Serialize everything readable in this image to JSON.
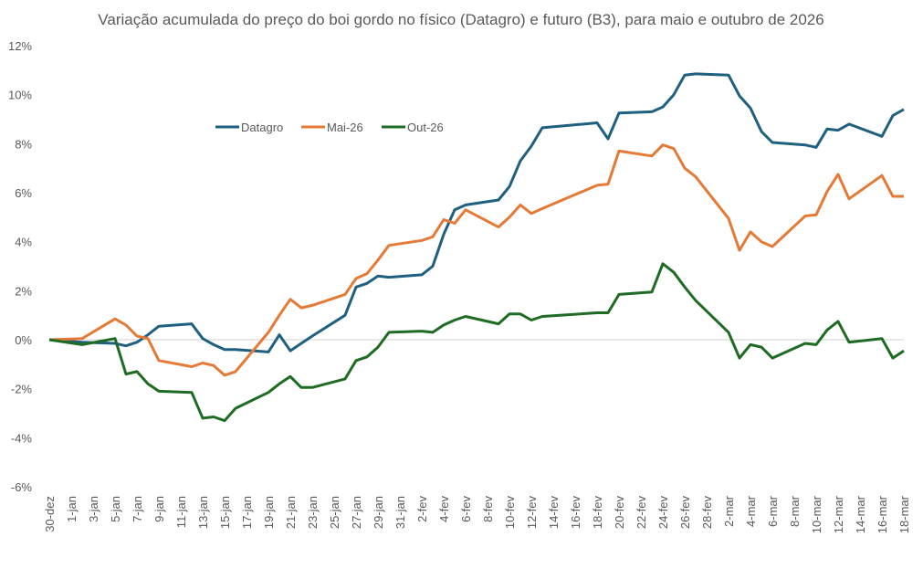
{
  "chart_data": {
    "type": "line",
    "title": "Variação acumulada do preço do boi gordo no físico (Datagro) e futuro (B3), para maio e outubro de 2026",
    "xlabel": "",
    "ylabel": "",
    "ylim": [
      -6,
      12
    ],
    "y_ticks": [
      "-6%",
      "-4%",
      "-2%",
      "0%",
      "2%",
      "4%",
      "6%",
      "8%",
      "10%",
      "12%"
    ],
    "y_tick_values": [
      -6,
      -4,
      -2,
      0,
      2,
      4,
      6,
      8,
      10,
      12
    ],
    "x_range": [
      "30-dez",
      "18-mar"
    ],
    "x_ticks": [
      "30-dez",
      "1-jan",
      "3-jan",
      "5-jan",
      "7-jan",
      "9-jan",
      "11-jan",
      "13-jan",
      "15-jan",
      "17-jan",
      "19-jan",
      "21-jan",
      "23-jan",
      "25-jan",
      "27-jan",
      "29-jan",
      "31-jan",
      "2-fev",
      "4-fev",
      "6-fev",
      "8-fev",
      "10-fev",
      "12-fev",
      "14-fev",
      "16-fev",
      "18-fev",
      "20-fev",
      "22-fev",
      "24-fev",
      "26-fev",
      "28-fev",
      "2-mar",
      "4-mar",
      "6-mar",
      "8-mar",
      "10-mar",
      "12-mar",
      "14-mar",
      "16-mar",
      "18-mar"
    ],
    "grid": "zero line only",
    "legend_placement": "top-left",
    "unit": "%",
    "x": [
      "30-dez",
      "2-jan",
      "5-jan",
      "6-jan",
      "7-jan",
      "8-jan",
      "9-jan",
      "12-jan",
      "13-jan",
      "14-jan",
      "15-jan",
      "16-jan",
      "19-jan",
      "20-jan",
      "21-jan",
      "22-jan",
      "23-jan",
      "26-jan",
      "27-jan",
      "28-jan",
      "29-jan",
      "30-jan",
      "2-fev",
      "3-fev",
      "4-fev",
      "5-fev",
      "6-fev",
      "9-fev",
      "10-fev",
      "11-fev",
      "12-fev",
      "13-fev",
      "18-fev",
      "19-fev",
      "20-fev",
      "23-fev",
      "24-fev",
      "25-fev",
      "26-fev",
      "27-fev",
      "2-mar",
      "3-mar",
      "4-mar",
      "5-mar",
      "6-mar",
      "9-mar",
      "10-mar",
      "11-mar",
      "12-mar",
      "13-mar",
      "16-mar",
      "17-mar",
      "18-mar"
    ],
    "series": [
      {
        "name": "Datagro",
        "color": "#1f5f80",
        "values": [
          0,
          -0.1,
          -0.15,
          -0.25,
          -0.1,
          0.2,
          0.55,
          0.65,
          0.05,
          -0.2,
          -0.4,
          -0.4,
          -0.5,
          0.2,
          -0.45,
          -0.15,
          0.15,
          1.0,
          2.15,
          2.3,
          2.6,
          2.55,
          2.65,
          3.0,
          4.3,
          5.3,
          5.5,
          5.7,
          6.25,
          7.3,
          7.9,
          8.65,
          8.85,
          8.2,
          9.25,
          9.3,
          9.5,
          10.0,
          10.8,
          10.85,
          10.8,
          9.95,
          9.45,
          8.5,
          8.05,
          7.95,
          7.85,
          8.6,
          8.55,
          8.8,
          8.3,
          9.15,
          9.4
        ]
      },
      {
        "name": "Mai-26",
        "color": "#e47a36",
        "values": [
          0,
          0.05,
          0.85,
          0.6,
          0.15,
          0.05,
          -0.85,
          -1.1,
          -0.95,
          -1.05,
          -1.45,
          -1.3,
          0.3,
          1.0,
          1.65,
          1.3,
          1.4,
          1.85,
          2.5,
          2.7,
          3.25,
          3.85,
          4.05,
          4.2,
          4.9,
          4.75,
          5.3,
          4.6,
          5.0,
          5.5,
          5.15,
          5.35,
          6.3,
          6.35,
          7.7,
          7.5,
          7.95,
          7.8,
          7.0,
          6.65,
          4.95,
          3.65,
          4.4,
          4.0,
          3.8,
          5.05,
          5.1,
          6.05,
          6.75,
          5.75,
          6.7,
          5.85,
          5.85
        ]
      },
      {
        "name": "Out-26",
        "color": "#1e6b23",
        "values": [
          0,
          -0.2,
          0.05,
          -1.4,
          -1.3,
          -1.8,
          -2.1,
          -2.15,
          -3.2,
          -3.15,
          -3.3,
          -2.8,
          -2.15,
          -1.8,
          -1.5,
          -1.95,
          -1.95,
          -1.6,
          -0.85,
          -0.7,
          -0.3,
          0.3,
          0.35,
          0.3,
          0.6,
          0.8,
          0.95,
          0.65,
          1.05,
          1.05,
          0.8,
          0.95,
          1.1,
          1.1,
          1.85,
          1.95,
          3.1,
          2.75,
          2.15,
          1.6,
          0.3,
          -0.75,
          -0.2,
          -0.3,
          -0.75,
          -0.15,
          -0.2,
          0.4,
          0.75,
          -0.1,
          0.05,
          -0.75,
          -0.45
        ]
      }
    ]
  }
}
